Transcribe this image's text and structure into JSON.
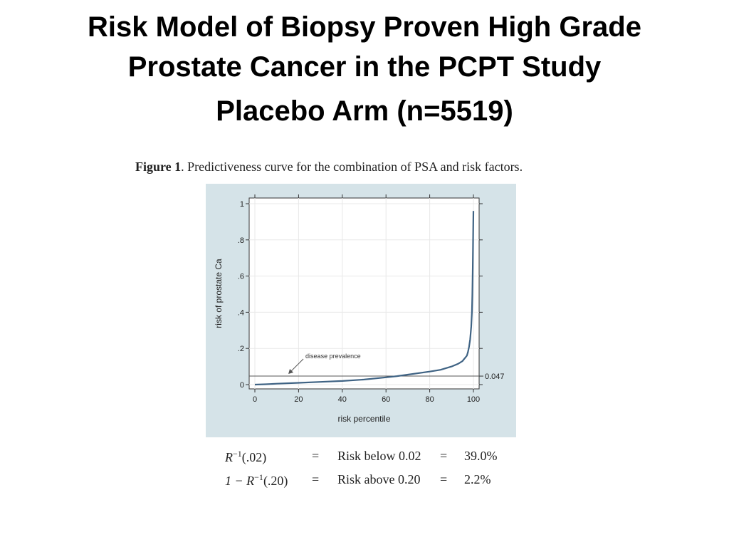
{
  "slide": {
    "title_line1": "Risk Model of Biopsy Proven High Grade",
    "title_line2": "Prostate Cancer in the PCPT Study",
    "subtitle": "Placebo Arm (n=5519)"
  },
  "figure": {
    "label": "Figure 1",
    "caption": ". Predictiveness curve for the combination of PSA and risk factors."
  },
  "chart_data": {
    "type": "line",
    "title": "",
    "xlabel": "risk percentile",
    "ylabel": "risk of prostate Ca",
    "xlim": [
      0,
      100
    ],
    "ylim": [
      0,
      1
    ],
    "x_ticks": [
      "0",
      "20",
      "40",
      "60",
      "80",
      "100"
    ],
    "y_ticks": [
      "0",
      ".2",
      ".4",
      ".6",
      ".8",
      "1"
    ],
    "grid": true,
    "reference_line": {
      "value": 0.047,
      "label": "0.047"
    },
    "annotation": {
      "text": "disease prevalence",
      "x": 15,
      "y": 0.055
    },
    "series": [
      {
        "x": [
          0,
          5,
          10,
          20,
          30,
          40,
          50,
          60,
          65,
          70,
          80,
          85,
          90,
          93,
          95,
          97,
          97.5,
          98,
          98.5,
          99,
          99.3,
          99.5,
          99.7,
          99.8,
          99.9,
          100
        ],
        "y": [
          0.0,
          0.002,
          0.005,
          0.01,
          0.015,
          0.02,
          0.028,
          0.04,
          0.047,
          0.055,
          0.072,
          0.082,
          0.1,
          0.115,
          0.13,
          0.16,
          0.18,
          0.21,
          0.25,
          0.32,
          0.4,
          0.5,
          0.65,
          0.75,
          0.86,
          0.96
        ]
      }
    ],
    "color": "#3f6384"
  },
  "formulas": [
    {
      "lhs_pre": "R",
      "lhs_sup": "−1",
      "lhs_post": "(.02)",
      "eq1": "=",
      "text": "Risk below 0.02",
      "eq2": "=",
      "value": "39.0%"
    },
    {
      "lhs_pre": "1 − R",
      "lhs_sup": "−1",
      "lhs_post": "(.20)",
      "eq1": "=",
      "text": "Risk above 0.20",
      "eq2": "=",
      "value": "2.2%"
    }
  ]
}
